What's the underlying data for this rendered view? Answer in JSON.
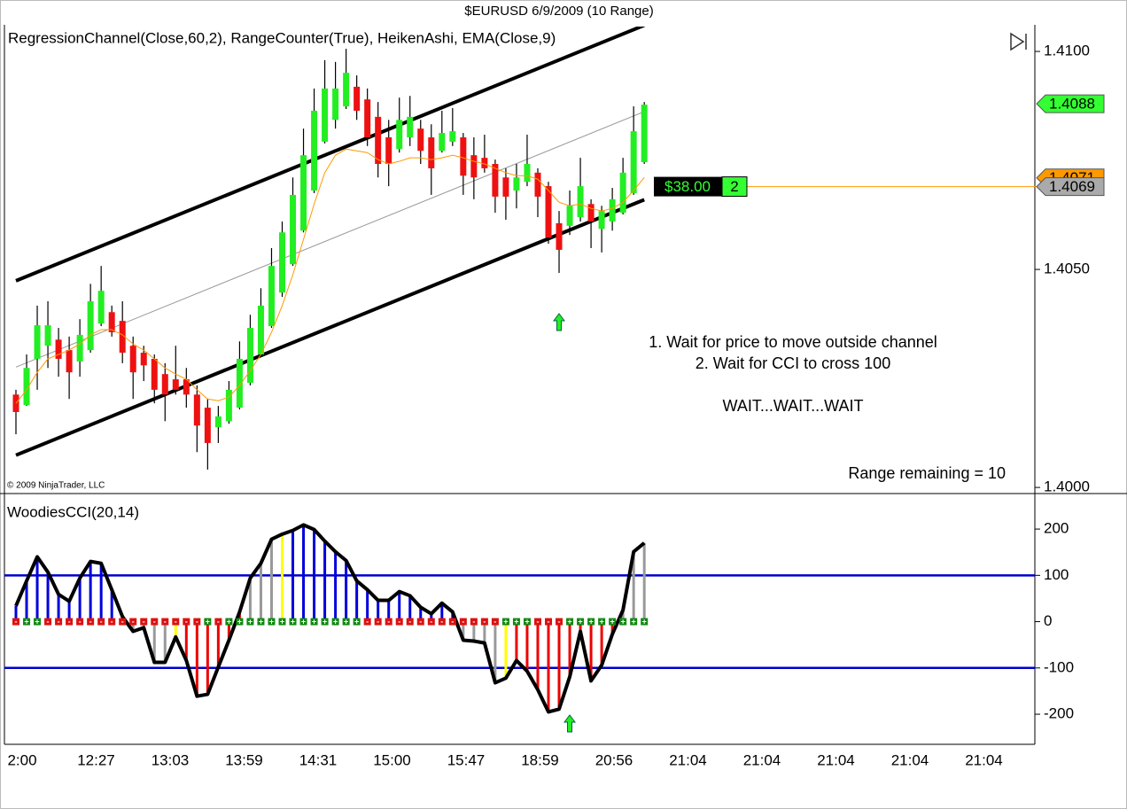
{
  "chart_data": [
    {
      "type": "candlestick",
      "title": "$EURUSD  6/9/2009 (10 Range)",
      "indicator_label": "RegressionChannel(Close,60,2),  RangeCounter(True),  HeikenAshi,  EMA(Close,9)",
      "copyright": "© 2009 NinjaTrader, LLC",
      "notes": [
        "1. Wait for price to move outside channel",
        "2. Wait for CCI to cross 100",
        "WAIT...WAIT...WAIT"
      ],
      "range_label": "Range remaining = 10",
      "ylim": [
        1.39986,
        1.41057
      ],
      "yticks": [
        {
          "value": 1.41,
          "label": "1.4100"
        },
        {
          "value": 1.405,
          "label": "1.4050"
        },
        {
          "value": 1.4,
          "label": "1.4000"
        }
      ],
      "up_color": "#22ee22",
      "down_color": "#ee1111",
      "open": [
        1.40213,
        1.40189,
        1.40295,
        1.40325,
        1.40339,
        1.40315,
        1.40289,
        1.40315,
        1.40376,
        1.40402,
        1.40382,
        1.40325,
        1.40309,
        1.40295,
        1.4026,
        1.40248,
        1.40248,
        1.40213,
        1.40183,
        1.40138,
        1.40152,
        1.40183,
        1.4024,
        1.40305,
        1.4037,
        1.40447,
        1.40512,
        1.40589,
        1.40681,
        1.40793,
        1.40843,
        1.40874,
        1.40919,
        1.4089,
        1.4085,
        1.40803,
        1.40776,
        1.40803,
        1.40823,
        1.40803,
        1.40772,
        1.40793,
        1.40803,
        1.40762,
        1.40756,
        1.40742,
        1.40711,
        1.40681,
        1.40701,
        1.40722,
        1.40691,
        1.40606,
        1.406,
        1.4062,
        1.4065,
        1.40593,
        1.4061,
        1.4063,
        1.40675,
        1.40746
      ],
      "high": [
        1.40224,
        1.40305,
        1.40417,
        1.40427,
        1.40366,
        1.40346,
        1.40386,
        1.40467,
        1.40508,
        1.40417,
        1.40427,
        1.40346,
        1.40325,
        1.40305,
        1.40285,
        1.40325,
        1.40274,
        1.40234,
        1.40203,
        1.40187,
        1.40244,
        1.40335,
        1.40396,
        1.40457,
        1.40549,
        1.4061,
        1.40711,
        1.40823,
        1.40915,
        1.4098,
        1.40976,
        1.41006,
        1.40945,
        1.40915,
        1.40884,
        1.40843,
        1.40894,
        1.40898,
        1.40843,
        1.40833,
        1.40864,
        1.4087,
        1.40813,
        1.40803,
        1.40809,
        1.40752,
        1.40732,
        1.40742,
        1.40809,
        1.40732,
        1.40701,
        1.40634,
        1.40681,
        1.40756,
        1.40661,
        1.40646,
        1.40687,
        1.40756,
        1.40874,
        1.40884
      ],
      "low": [
        1.40122,
        1.40187,
        1.40224,
        1.40274,
        1.40254,
        1.40203,
        1.40254,
        1.40309,
        1.4037,
        1.40346,
        1.40285,
        1.40203,
        1.40244,
        1.40193,
        1.40152,
        1.40213,
        1.40183,
        1.40081,
        1.40041,
        1.40102,
        1.40146,
        1.40179,
        1.40234,
        1.40301,
        1.40366,
        1.40437,
        1.40508,
        1.40585,
        1.40675,
        1.40789,
        1.40823,
        1.40868,
        1.40843,
        1.40783,
        1.40711,
        1.40691,
        1.40768,
        1.40783,
        1.40742,
        1.40671,
        1.40768,
        1.40783,
        1.40671,
        1.40661,
        1.40722,
        1.4063,
        1.40614,
        1.4064,
        1.40691,
        1.4062,
        1.40559,
        1.40492,
        1.40579,
        1.4061,
        1.40549,
        1.40539,
        1.40589,
        1.40626,
        1.40671,
        1.40742
      ],
      "close": [
        1.40173,
        1.40274,
        1.40372,
        1.40372,
        1.40295,
        1.40264,
        1.4035,
        1.40427,
        1.40451,
        1.40356,
        1.40309,
        1.40264,
        1.4028,
        1.40224,
        1.40213,
        1.40224,
        1.40213,
        1.40142,
        1.40102,
        1.40163,
        1.40224,
        1.40295,
        1.40366,
        1.40417,
        1.40508,
        1.40585,
        1.40671,
        1.40762,
        1.40864,
        1.40915,
        1.40915,
        1.40951,
        1.40864,
        1.40803,
        1.40742,
        1.40742,
        1.40843,
        1.4085,
        1.40772,
        1.40732,
        1.40813,
        1.40817,
        1.40715,
        1.40711,
        1.40732,
        1.40667,
        1.40667,
        1.40711,
        1.40742,
        1.40667,
        1.40573,
        1.40545,
        1.40646,
        1.40691,
        1.4061,
        1.40634,
        1.40661,
        1.40722,
        1.40817,
        1.40878
      ],
      "ema": {
        "color": "#ff9900",
        "values": [
          1.40193,
          1.40224,
          1.40264,
          1.40295,
          1.40305,
          1.40315,
          1.40329,
          1.4035,
          1.40362,
          1.40362,
          1.4035,
          1.40329,
          1.40315,
          1.40295,
          1.40274,
          1.4026,
          1.40248,
          1.40224,
          1.40203,
          1.40199,
          1.40207,
          1.40234,
          1.40268,
          1.40305,
          1.40356,
          1.40417,
          1.40488,
          1.40569,
          1.4065,
          1.40722,
          1.40762,
          1.40776,
          1.40772,
          1.40768,
          1.40752,
          1.40742,
          1.40748,
          1.40756,
          1.40756,
          1.40752,
          1.40756,
          1.40762,
          1.40756,
          1.40748,
          1.40742,
          1.40732,
          1.40722,
          1.40715,
          1.40715,
          1.40707,
          1.40681,
          1.40654,
          1.40646,
          1.4065,
          1.4064,
          1.40634,
          1.4064,
          1.40654,
          1.40681,
          1.40711
        ]
      },
      "regression_channel": {
        "color": "#000000",
        "middle_color": "#999999",
        "upper": [
          1.40474,
          1.4106
        ],
        "middle": [
          1.40276,
          1.40862
        ],
        "lower": [
          1.40074,
          1.4066
        ]
      },
      "price_markers": [
        {
          "value": 1.4088,
          "color": "#33ff33"
        },
        {
          "value": 1.4071,
          "color": "#ff9900"
        },
        {
          "value": 1.4069,
          "color": "#aaaaaa"
        }
      ],
      "position": {
        "pnl": "$38.00",
        "quantity": 2,
        "price": 1.4069,
        "color": "#ff9900"
      }
    },
    {
      "type": "cci",
      "title": "WoodiesCCI(20,14)",
      "ylim": [
        -265,
        271
      ],
      "yticks": [
        200,
        100,
        0,
        -100,
        -200
      ],
      "values": [
        34,
        88,
        140,
        107,
        59,
        44,
        94,
        130,
        126,
        69,
        11,
        -21,
        -13,
        -88,
        -88,
        -33,
        -84,
        -161,
        -157,
        -98,
        -40,
        21,
        94,
        126,
        178,
        189,
        197,
        209,
        199,
        174,
        151,
        132,
        88,
        69,
        46,
        46,
        65,
        56,
        31,
        17,
        40,
        21,
        -40,
        -42,
        -46,
        -132,
        -122,
        -84,
        -107,
        -147,
        -195,
        -189,
        -119,
        -21,
        -128,
        -94,
        -27,
        25,
        151,
        170
      ],
      "bar_colors": [
        "#0000dd",
        "#0000dd",
        "#0000dd",
        "#0000dd",
        "#0000dd",
        "#0000dd",
        "#0000dd",
        "#0000dd",
        "#0000dd",
        "#0000dd",
        "#0000dd",
        "#999999",
        "#999999",
        "#999999",
        "#999999",
        "#ffff00",
        "#ee0000",
        "#ee0000",
        "#ee0000",
        "#ee0000",
        "#ee0000",
        "#ee0000",
        "#999999",
        "#999999",
        "#999999",
        "#ffff00",
        "#0000dd",
        "#0000dd",
        "#0000dd",
        "#0000dd",
        "#0000dd",
        "#0000dd",
        "#0000dd",
        "#0000dd",
        "#0000dd",
        "#0000dd",
        "#0000dd",
        "#0000dd",
        "#0000dd",
        "#0000dd",
        "#0000dd",
        "#0000dd",
        "#999999",
        "#999999",
        "#999999",
        "#999999",
        "#ffff00",
        "#ee0000",
        "#ee0000",
        "#ee0000",
        "#ee0000",
        "#ee0000",
        "#ee0000",
        "#ee0000",
        "#ee0000",
        "#ee0000",
        "#ee0000",
        "#999999",
        "#999999",
        "#999999"
      ],
      "line_color": "#000000",
      "levels": [
        100,
        -100
      ],
      "level_color": "#0000cc",
      "zero_line": [
        "-",
        "+",
        "+",
        "-",
        "-",
        "-",
        "-",
        "-",
        "-",
        "-",
        "-",
        "-",
        "-",
        "-",
        "-",
        "-",
        "-",
        "-",
        "+",
        "-",
        "+",
        "+",
        "+",
        "+",
        "+",
        "+",
        "+",
        "+",
        "+",
        "+",
        "+",
        "+",
        "+",
        "-",
        "-",
        "-",
        "-",
        "-",
        "-",
        "-",
        "-",
        "-",
        "-",
        "-",
        "-",
        "-",
        "+",
        "+",
        "+",
        "-",
        "-",
        "-",
        "+",
        "+",
        "+",
        "+",
        "+",
        "+",
        "+",
        "+"
      ],
      "x_labels": [
        "2:00",
        "12:27",
        "13:03",
        "13:59",
        "14:31",
        "15:00",
        "15:47",
        "18:59",
        "20:56",
        "21:04",
        "21:04",
        "21:04",
        "21:04",
        "21:04"
      ]
    }
  ]
}
